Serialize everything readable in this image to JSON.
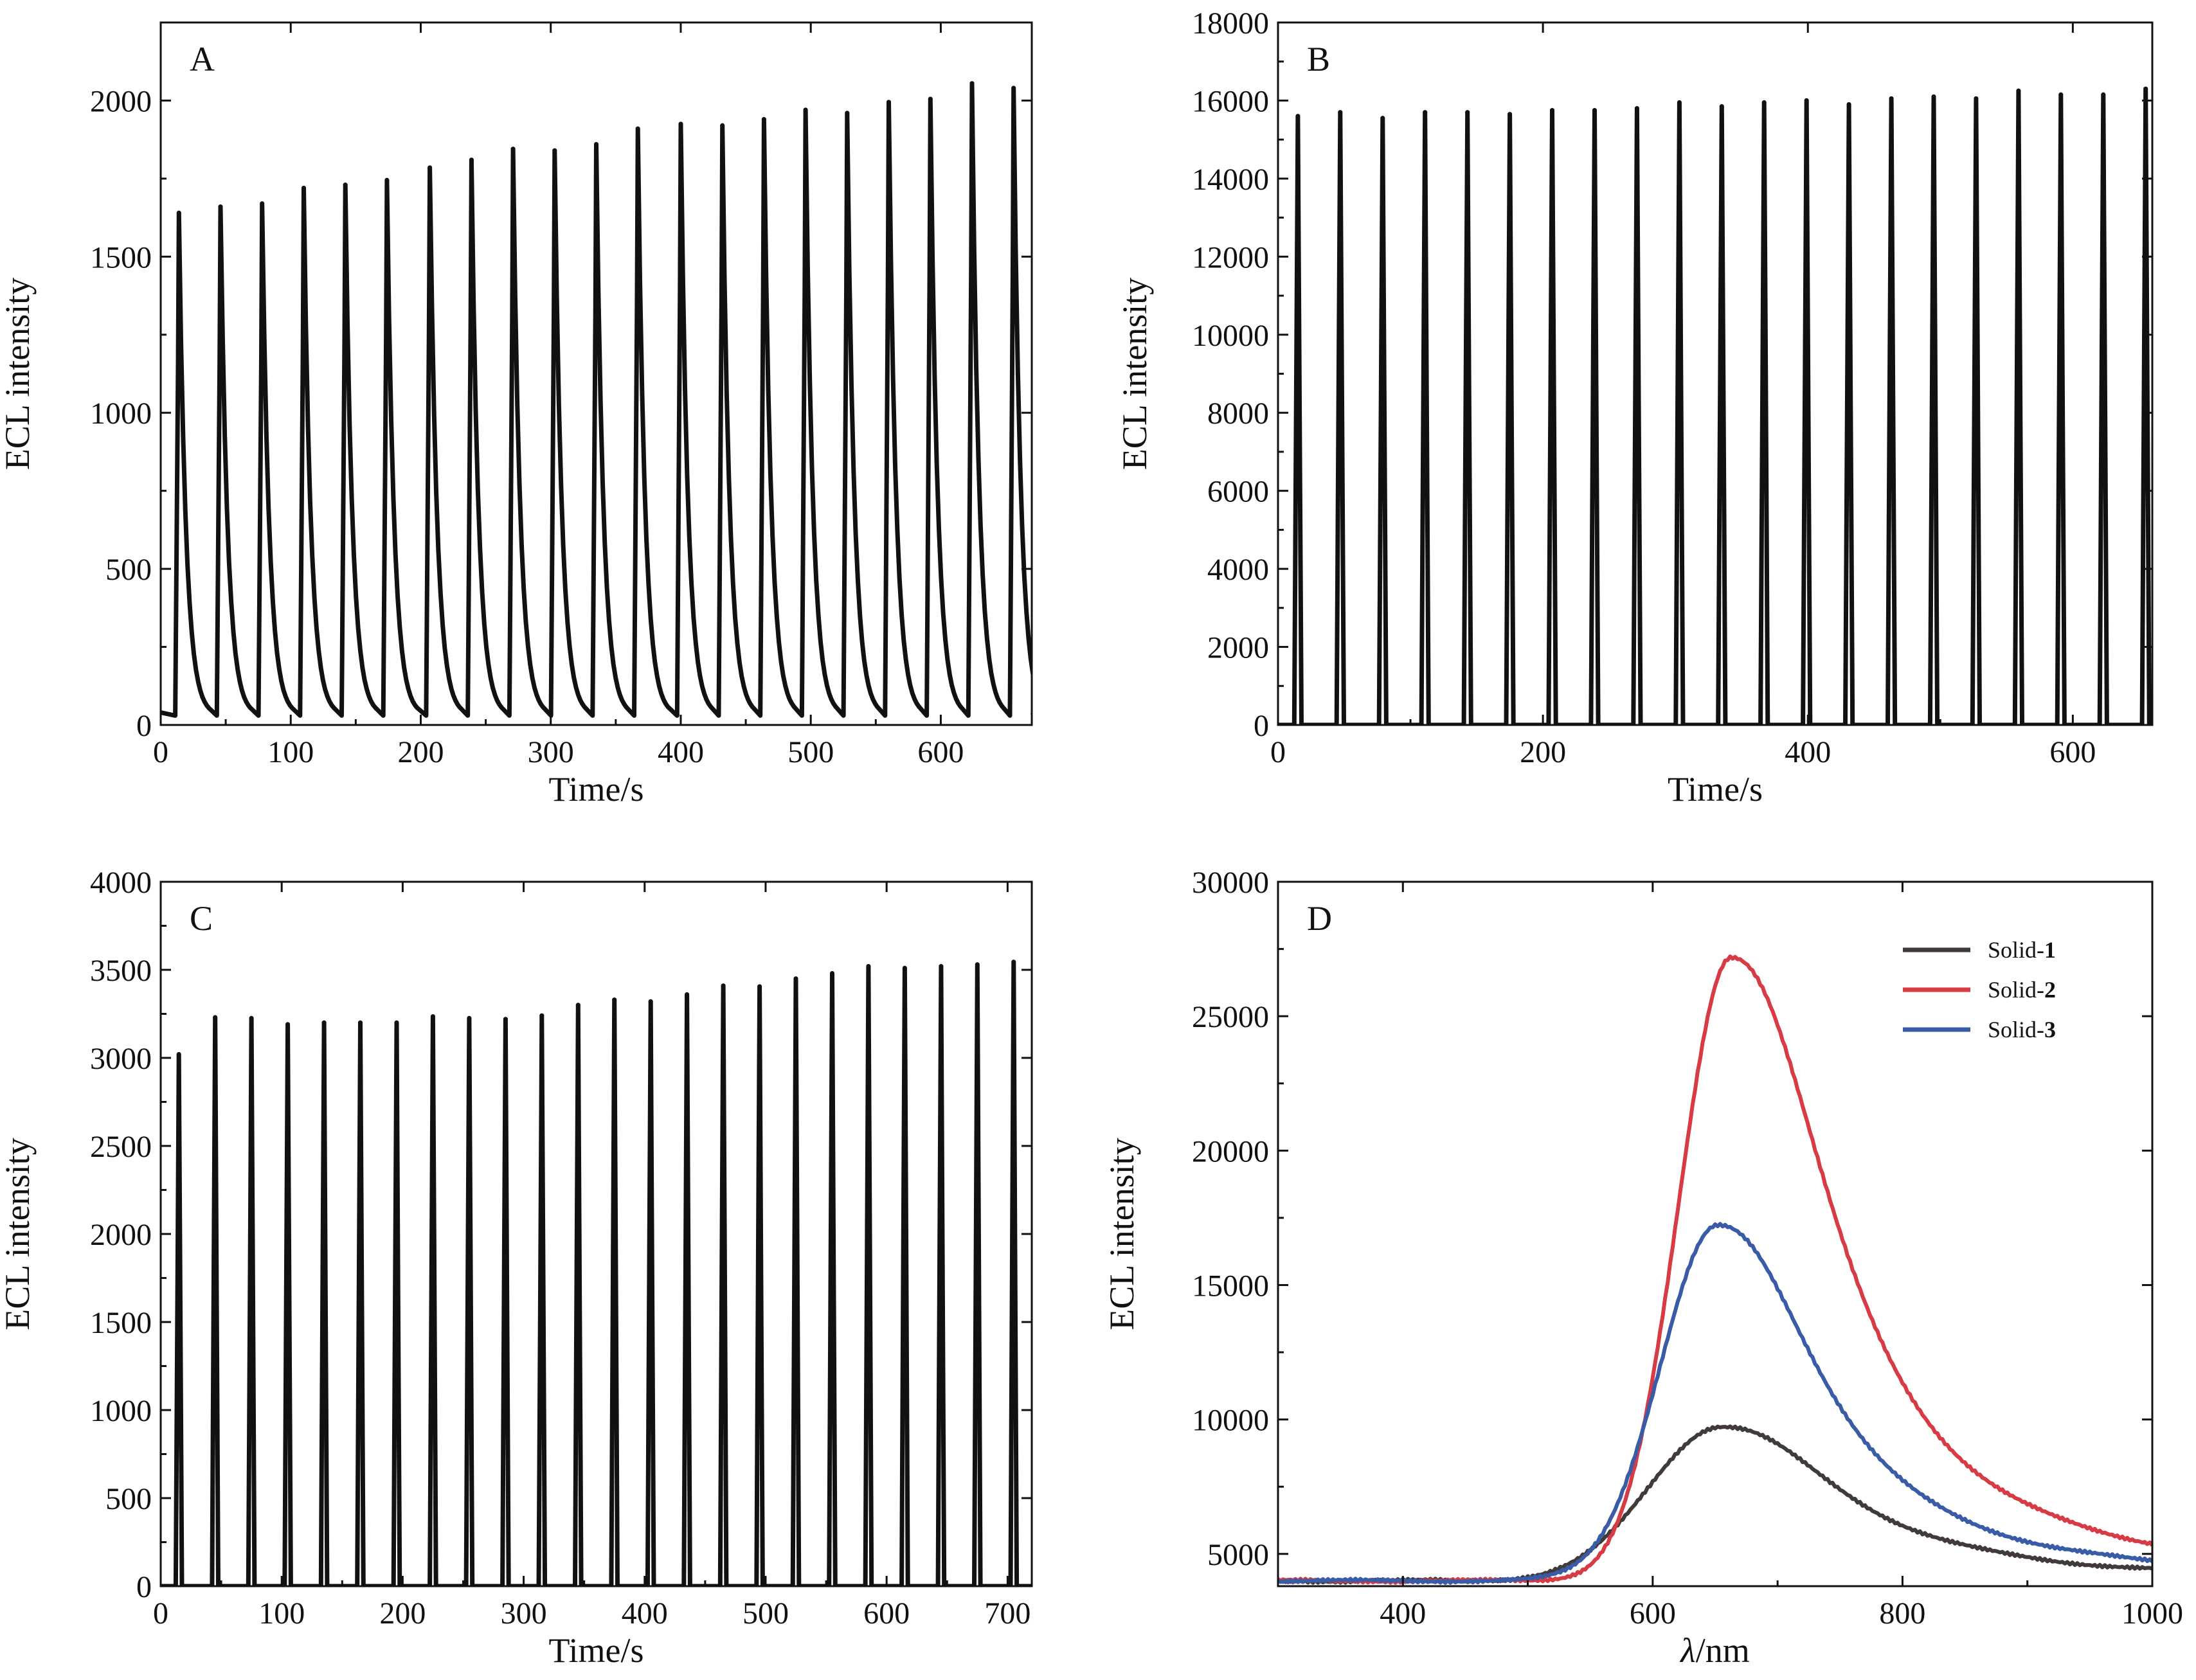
{
  "figure": {
    "chart_data": [
      {
        "panel": "A",
        "type": "line",
        "xlabel": "Time/s",
        "ylabel": "ECL intensity",
        "xlim": [
          0,
          670
        ],
        "ylim": [
          0,
          2250
        ],
        "xticks": [
          0,
          100,
          200,
          300,
          400,
          500,
          600
        ],
        "yticks": [
          0,
          500,
          1000,
          1500,
          2000
        ],
        "baseline": 30,
        "pulse_shape": "slow-decay",
        "grid": false,
        "series": [
          {
            "x": [
              14,
              46,
              78,
              110,
              142,
              174,
              207,
              239,
              271,
              303,
              335,
              367,
              400,
              432,
              464,
              496,
              528,
              560,
              592,
              624,
              656
            ],
            "values": [
              1640,
              1660,
              1670,
              1720,
              1730,
              1745,
              1785,
              1810,
              1845,
              1840,
              1860,
              1910,
              1925,
              1920,
              1940,
              1970,
              1960,
              1995,
              2005,
              2055,
              2040
            ],
            "color": "#111111"
          }
        ]
      },
      {
        "panel": "B",
        "type": "line",
        "xlabel": "Time/s",
        "ylabel": "ECL intensity",
        "xlim": [
          0,
          660
        ],
        "ylim": [
          0,
          18000
        ],
        "xticks": [
          0,
          200,
          400,
          600
        ],
        "yticks": [
          0,
          2000,
          4000,
          6000,
          8000,
          10000,
          12000,
          14000,
          16000,
          18000
        ],
        "baseline": 0,
        "pulse_shape": "narrow",
        "grid": false,
        "series": [
          {
            "x": [
              15,
              47,
              79,
              111,
              143,
              175,
              207,
              239,
              271,
              303,
              335,
              367,
              399,
              431,
              463,
              495,
              527,
              559,
              591,
              623,
              655
            ],
            "values": [
              15600,
              15700,
              15550,
              15700,
              15700,
              15650,
              15750,
              15750,
              15800,
              15950,
              15850,
              15950,
              16000,
              15900,
              16050,
              16100,
              16050,
              16250,
              16150,
              16150,
              16300
            ],
            "color": "#111111"
          }
        ]
      },
      {
        "panel": "C",
        "type": "line",
        "xlabel": "Time/s",
        "ylabel": "ECL intensity",
        "xlim": [
          0,
          720
        ],
        "ylim": [
          0,
          4000
        ],
        "xticks": [
          0,
          100,
          200,
          300,
          400,
          500,
          600,
          700
        ],
        "yticks": [
          0,
          500,
          1000,
          1500,
          2000,
          2500,
          3000,
          3500,
          4000
        ],
        "baseline": 0,
        "pulse_shape": "narrow",
        "grid": false,
        "series": [
          {
            "x": [
              15,
              45,
              75,
              105,
              135,
              165,
              195,
              225,
              255,
              285,
              315,
              345,
              375,
              405,
              435,
              465,
              495,
              525,
              555,
              585,
              615,
              645,
              675,
              705
            ],
            "values": [
              3020,
              3230,
              3225,
              3190,
              3200,
              3200,
              3200,
              3235,
              3225,
              3220,
              3240,
              3300,
              3330,
              3320,
              3360,
              3410,
              3405,
              3450,
              3480,
              3520,
              3510,
              3520,
              3530,
              3545
            ],
            "color": "#111111"
          }
        ]
      },
      {
        "panel": "D",
        "type": "line",
        "xlabel_italic": "λ",
        "xlabel_rest": "/nm",
        "ylabel": "ECL intensity",
        "xlim": [
          300,
          1000
        ],
        "ylim": [
          3800,
          30000
        ],
        "xticks": [
          400,
          600,
          800,
          1000
        ],
        "yticks": [
          5000,
          10000,
          15000,
          20000,
          25000,
          30000
        ],
        "grid": false,
        "legend": "top-right",
        "series": [
          {
            "name_prefix": "Solid-",
            "name_bold": "1",
            "color": "#403a38",
            "peak": 9750,
            "center": 655,
            "base": 4000,
            "width_left": 58,
            "width_right": 95
          },
          {
            "name_prefix": "Solid-",
            "name_bold": "2",
            "color": "#d73b44",
            "peak": 27200,
            "center": 663,
            "base": 4000,
            "width_left": 42,
            "width_right": 82
          },
          {
            "name_prefix": "Solid-",
            "name_bold": "3",
            "color": "#3a5ba6",
            "peak": 17200,
            "center": 652,
            "base": 4000,
            "width_left": 46,
            "width_right": 82
          }
        ]
      }
    ]
  }
}
